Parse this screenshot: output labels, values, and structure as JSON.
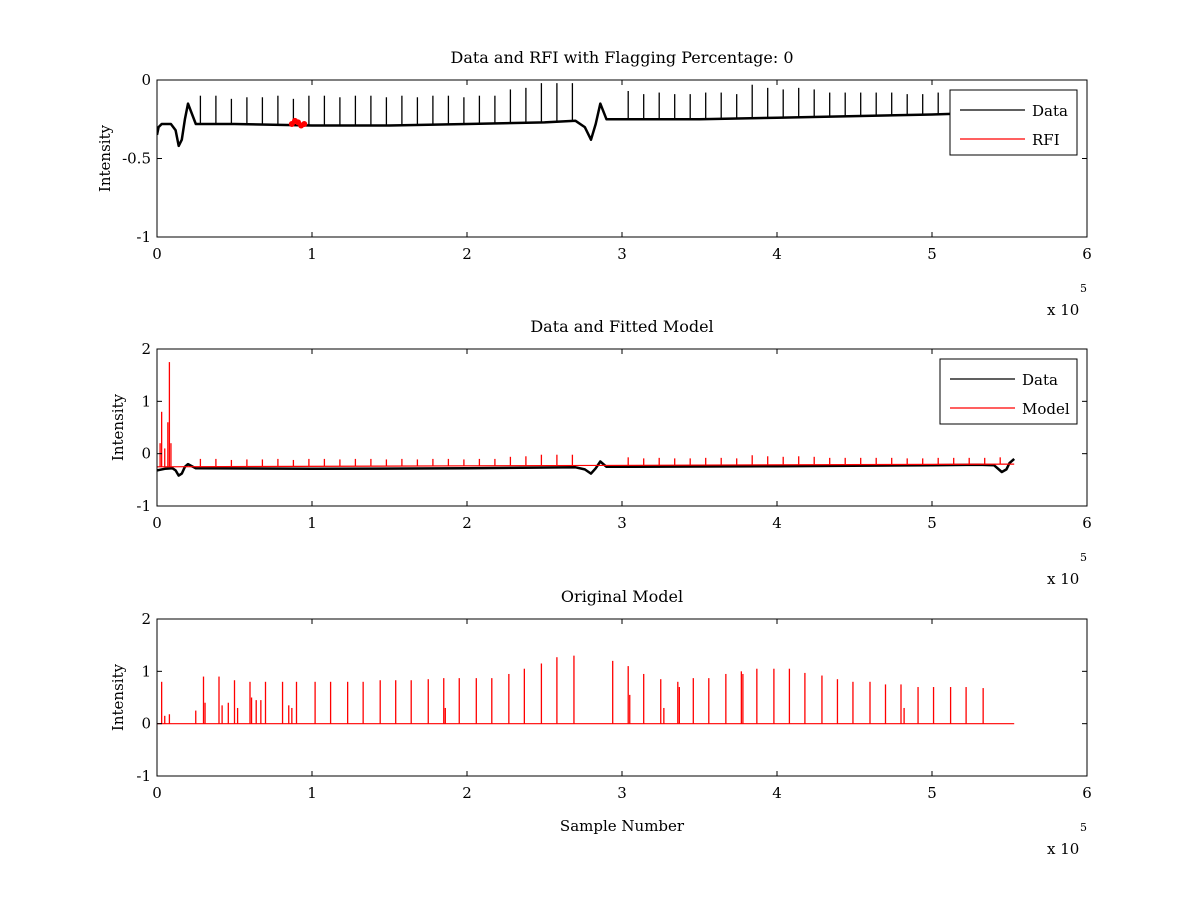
{
  "chart_data": [
    {
      "type": "line",
      "title": "Data and RFI with Flagging Percentage: 0",
      "xlabel": "",
      "ylabel": "Intensity",
      "xlim": [
        0,
        6
      ],
      "ylim": [
        -1,
        0
      ],
      "xticks": [
        "0",
        "1",
        "2",
        "3",
        "4",
        "5",
        "6"
      ],
      "yticks": [
        "-1",
        "-0.5",
        "0"
      ],
      "x_multiplier": {
        "base": "x 10",
        "exponent": "5"
      },
      "legend": {
        "position": "top-right",
        "entries": [
          {
            "label": "Data",
            "color": "#000000"
          },
          {
            "label": "RFI",
            "color": "#ff0000"
          }
        ]
      },
      "series": [
        {
          "name": "Data",
          "color": "#000000",
          "x": [
            0,
            0.01,
            0.03,
            0.06,
            0.09,
            0.12,
            0.14,
            0.16,
            0.18,
            0.2,
            0.25,
            0.5,
            1.0,
            1.5,
            2.0,
            2.5,
            2.7,
            2.76,
            2.8,
            2.83,
            2.86,
            2.9,
            3.0,
            3.5,
            4.0,
            4.5,
            5.0,
            5.3,
            5.5,
            5.53
          ],
          "y": [
            -0.35,
            -0.3,
            -0.28,
            -0.28,
            -0.28,
            -0.32,
            -0.42,
            -0.38,
            -0.25,
            -0.15,
            -0.28,
            -0.28,
            -0.29,
            -0.29,
            -0.28,
            -0.27,
            -0.26,
            -0.3,
            -0.38,
            -0.28,
            -0.15,
            -0.25,
            -0.25,
            -0.25,
            -0.24,
            -0.23,
            -0.22,
            -0.21,
            -0.21,
            -0.2
          ],
          "spikes": {
            "x": [
              0.28,
              0.38,
              0.48,
              0.58,
              0.68,
              0.78,
              0.88,
              0.98,
              1.08,
              1.18,
              1.28,
              1.38,
              1.48,
              1.58,
              1.68,
              1.78,
              1.88,
              1.98,
              2.08,
              2.18,
              2.28,
              2.38,
              2.48,
              2.58,
              2.68,
              3.04,
              3.14,
              3.24,
              3.34,
              3.44,
              3.54,
              3.64,
              3.74,
              3.84,
              3.94,
              4.04,
              4.14,
              4.24,
              4.34,
              4.44,
              4.54,
              4.64,
              4.74,
              4.84,
              4.94,
              5.04,
              5.14,
              5.24,
              5.34,
              5.44
            ],
            "y": [
              -0.1,
              -0.1,
              -0.12,
              -0.11,
              -0.11,
              -0.1,
              -0.12,
              -0.1,
              -0.1,
              -0.11,
              -0.1,
              -0.1,
              -0.11,
              -0.1,
              -0.11,
              -0.1,
              -0.1,
              -0.11,
              -0.1,
              -0.1,
              -0.06,
              -0.05,
              -0.02,
              -0.02,
              -0.02,
              -0.07,
              -0.09,
              -0.08,
              -0.09,
              -0.09,
              -0.08,
              -0.08,
              -0.09,
              -0.03,
              -0.05,
              -0.06,
              -0.05,
              -0.06,
              -0.08,
              -0.08,
              -0.08,
              -0.08,
              -0.08,
              -0.09,
              -0.09,
              -0.08,
              -0.08,
              -0.08,
              -0.08,
              -0.07
            ]
          }
        },
        {
          "name": "RFI",
          "color": "#ff0000",
          "x": [
            0.87,
            0.89,
            0.91,
            0.93,
            0.95
          ],
          "y": [
            -0.28,
            -0.26,
            -0.27,
            -0.29,
            -0.28
          ]
        }
      ]
    },
    {
      "type": "line",
      "title": "Data and Fitted Model",
      "xlabel": "",
      "ylabel": "Intensity",
      "xlim": [
        0,
        6
      ],
      "ylim": [
        -1,
        2
      ],
      "xticks": [
        "0",
        "1",
        "2",
        "3",
        "4",
        "5",
        "6"
      ],
      "yticks": [
        "-1",
        "0",
        "1",
        "2"
      ],
      "x_multiplier": {
        "base": "x 10",
        "exponent": "5"
      },
      "legend": {
        "position": "top-right",
        "entries": [
          {
            "label": "Data",
            "color": "#000000"
          },
          {
            "label": "Model",
            "color": "#ff0000"
          }
        ]
      },
      "series": [
        {
          "name": "Data",
          "color": "#000000",
          "x": [
            0,
            0.05,
            0.1,
            0.12,
            0.14,
            0.16,
            0.18,
            0.2,
            0.25,
            1.0,
            2.0,
            2.7,
            2.76,
            2.8,
            2.83,
            2.86,
            2.9,
            3.0,
            4.0,
            5.0,
            5.3,
            5.4,
            5.45,
            5.48,
            5.5,
            5.53
          ],
          "y": [
            -0.32,
            -0.29,
            -0.28,
            -0.32,
            -0.42,
            -0.38,
            -0.25,
            -0.2,
            -0.28,
            -0.29,
            -0.28,
            -0.26,
            -0.3,
            -0.38,
            -0.28,
            -0.15,
            -0.25,
            -0.25,
            -0.24,
            -0.22,
            -0.21,
            -0.22,
            -0.35,
            -0.3,
            -0.18,
            -0.1
          ]
        },
        {
          "name": "Model",
          "color": "#ff0000",
          "x": [
            0,
            5.53
          ],
          "y": [
            -0.25,
            -0.2
          ],
          "spikes": {
            "x": [
              0.02,
              0.03,
              0.05,
              0.07,
              0.08,
              0.09,
              0.28,
              0.38,
              0.48,
              0.58,
              0.68,
              0.78,
              0.88,
              0.98,
              1.08,
              1.18,
              1.28,
              1.38,
              1.48,
              1.58,
              1.68,
              1.78,
              1.88,
              1.98,
              2.08,
              2.18,
              2.28,
              2.38,
              2.48,
              2.58,
              2.68,
              3.04,
              3.14,
              3.24,
              3.34,
              3.44,
              3.54,
              3.64,
              3.74,
              3.84,
              3.94,
              4.04,
              4.14,
              4.24,
              4.34,
              4.44,
              4.54,
              4.64,
              4.74,
              4.84,
              4.94,
              5.04,
              5.14,
              5.24,
              5.34,
              5.44
            ],
            "y": [
              0.2,
              0.8,
              0.1,
              0.6,
              1.75,
              0.2,
              -0.1,
              -0.1,
              -0.12,
              -0.11,
              -0.11,
              -0.1,
              -0.12,
              -0.1,
              -0.1,
              -0.11,
              -0.1,
              -0.1,
              -0.11,
              -0.1,
              -0.11,
              -0.1,
              -0.1,
              -0.11,
              -0.1,
              -0.1,
              -0.06,
              -0.05,
              -0.02,
              -0.02,
              -0.02,
              -0.07,
              -0.09,
              -0.08,
              -0.09,
              -0.09,
              -0.08,
              -0.08,
              -0.09,
              -0.03,
              -0.05,
              -0.06,
              -0.05,
              -0.06,
              -0.08,
              -0.08,
              -0.08,
              -0.08,
              -0.08,
              -0.09,
              -0.09,
              -0.08,
              -0.08,
              -0.08,
              -0.08,
              -0.07
            ]
          }
        }
      ]
    },
    {
      "type": "line",
      "title": "Original Model",
      "xlabel": "Sample Number",
      "ylabel": "Intensity",
      "xlim": [
        0,
        6
      ],
      "ylim": [
        -1,
        2
      ],
      "xticks": [
        "0",
        "1",
        "2",
        "3",
        "4",
        "5",
        "6"
      ],
      "yticks": [
        "-1",
        "0",
        "1",
        "2"
      ],
      "x_multiplier": {
        "base": "x 10",
        "exponent": "5"
      },
      "series": [
        {
          "name": "",
          "color": "#ff0000",
          "x": [
            0,
            5.53
          ],
          "y": [
            0,
            0
          ],
          "spikes": {
            "x": [
              0.03,
              0.05,
              0.08,
              0.25,
              0.3,
              0.31,
              0.4,
              0.42,
              0.46,
              0.5,
              0.52,
              0.6,
              0.61,
              0.64,
              0.67,
              0.7,
              0.81,
              0.85,
              0.87,
              0.9,
              1.02,
              1.12,
              1.23,
              1.33,
              1.44,
              1.54,
              1.64,
              1.75,
              1.85,
              1.86,
              1.95,
              2.06,
              2.16,
              2.27,
              2.37,
              2.48,
              2.58,
              2.69,
              2.94,
              3.04,
              3.05,
              3.14,
              3.25,
              3.27,
              3.36,
              3.37,
              3.46,
              3.56,
              3.67,
              3.77,
              3.78,
              3.87,
              3.98,
              4.08,
              4.18,
              4.29,
              4.39,
              4.49,
              4.6,
              4.7,
              4.8,
              4.82,
              4.91,
              5.01,
              5.12,
              5.22,
              5.33
            ],
            "y": [
              0.8,
              0.15,
              0.18,
              0.25,
              0.9,
              0.4,
              0.9,
              0.35,
              0.4,
              0.83,
              0.3,
              0.8,
              0.5,
              0.45,
              0.45,
              0.8,
              0.8,
              0.35,
              0.3,
              0.8,
              0.8,
              0.8,
              0.8,
              0.8,
              0.83,
              0.83,
              0.83,
              0.85,
              0.87,
              0.3,
              0.87,
              0.87,
              0.87,
              0.95,
              1.05,
              1.15,
              1.27,
              1.3,
              1.2,
              1.1,
              0.55,
              0.95,
              0.85,
              0.3,
              0.8,
              0.7,
              0.87,
              0.87,
              0.95,
              1.0,
              0.95,
              1.05,
              1.05,
              1.05,
              0.97,
              0.92,
              0.85,
              0.8,
              0.8,
              0.75,
              0.75,
              0.3,
              0.7,
              0.7,
              0.7,
              0.7,
              0.68
            ]
          }
        }
      ]
    }
  ]
}
